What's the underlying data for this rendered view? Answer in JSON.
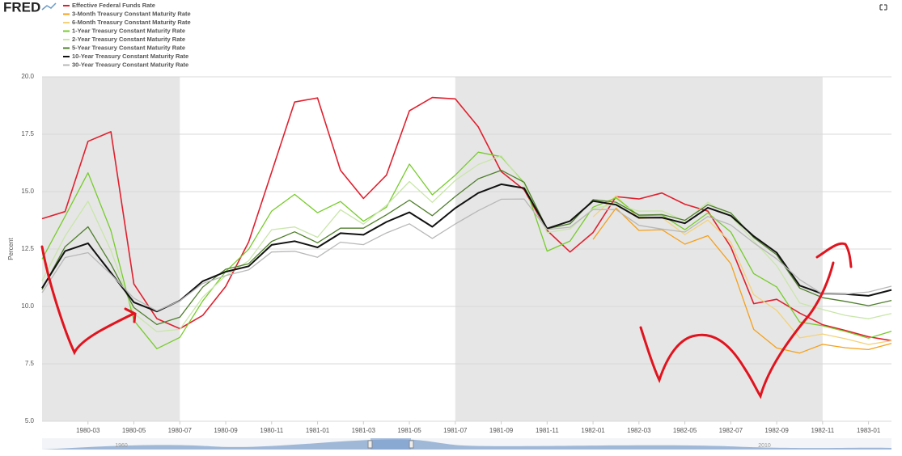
{
  "chart_data": {
    "type": "line",
    "logo": "FRED",
    "y_label": "Percent",
    "x": [
      "1980-01",
      "1980-02",
      "1980-03",
      "1980-04",
      "1980-05",
      "1980-06",
      "1980-07",
      "1980-08",
      "1980-09",
      "1980-10",
      "1980-11",
      "1980-12",
      "1981-01",
      "1981-02",
      "1981-03",
      "1981-04",
      "1981-05",
      "1981-06",
      "1981-07",
      "1981-08",
      "1981-09",
      "1981-10",
      "1981-11",
      "1981-12",
      "1982-01",
      "1982-02",
      "1982-03",
      "1982-04",
      "1982-05",
      "1982-06",
      "1982-07",
      "1982-08",
      "1982-09",
      "1982-10",
      "1982-11",
      "1982-12",
      "1983-01",
      "1983-02"
    ],
    "xlim": [
      "1980-01",
      "1983-02"
    ],
    "xticks": [
      "1980-03",
      "1980-05",
      "1980-07",
      "1980-09",
      "1980-11",
      "1981-01",
      "1981-03",
      "1981-05",
      "1981-07",
      "1981-09",
      "1981-11",
      "1982-01",
      "1982-03",
      "1982-05",
      "1982-07",
      "1982-09",
      "1982-11",
      "1983-01"
    ],
    "ylim": [
      5,
      20
    ],
    "yticks": [
      {
        "value": 20,
        "label": "20.0"
      },
      17.5,
      {
        "value": 15,
        "label": "15.0"
      },
      12.5,
      {
        "value": 10,
        "label": "10.0"
      },
      7.5,
      {
        "value": 5,
        "label": "5.0"
      }
    ],
    "grid": true,
    "shaded_periods": [
      [
        "1980-01",
        "1980-07"
      ],
      [
        "1981-07",
        "1982-11"
      ]
    ],
    "navigator_labels": [
      "1960",
      "2010"
    ],
    "series": [
      {
        "name": "Effective Federal Funds Rate",
        "color": "#e0202e",
        "values": [
          13.82,
          14.13,
          17.19,
          17.61,
          10.98,
          9.47,
          9.03,
          9.61,
          10.87,
          12.81,
          15.85,
          18.9,
          19.08,
          15.93,
          14.7,
          15.72,
          18.52,
          19.1,
          19.04,
          17.82,
          15.87,
          15.08,
          13.31,
          12.37,
          13.22,
          14.78,
          14.68,
          14.94,
          14.45,
          14.15,
          12.59,
          10.12,
          10.31,
          9.71,
          9.2,
          8.95,
          8.68,
          8.51
        ]
      },
      {
        "name": "3-Month Treasury Constant Maturity Rate",
        "color": "#f5a01a",
        "values": [
          null,
          null,
          null,
          null,
          null,
          null,
          null,
          null,
          null,
          null,
          null,
          null,
          null,
          null,
          null,
          null,
          null,
          null,
          null,
          null,
          null,
          null,
          null,
          null,
          12.92,
          14.28,
          13.31,
          13.34,
          12.71,
          13.08,
          11.86,
          9.0,
          8.19,
          7.97,
          8.35,
          8.2,
          8.12,
          8.39
        ]
      },
      {
        "name": "6-Month Treasury Constant Maturity Rate",
        "color": "#f3d27a",
        "values": [
          null,
          null,
          null,
          null,
          null,
          null,
          null,
          null,
          null,
          null,
          null,
          null,
          null,
          null,
          null,
          null,
          null,
          null,
          null,
          null,
          null,
          null,
          null,
          null,
          13.9,
          14.81,
          13.83,
          13.87,
          13.13,
          13.76,
          12.8,
          10.51,
          9.83,
          8.63,
          8.8,
          8.59,
          8.34,
          8.51
        ]
      },
      {
        "name": "1-Year Treasury Constant Maturity Rate",
        "color": "#76cc2a",
        "values": [
          12.06,
          13.92,
          15.82,
          13.3,
          9.39,
          8.16,
          8.65,
          10.24,
          11.52,
          12.49,
          14.15,
          14.88,
          14.08,
          14.57,
          13.71,
          14.32,
          16.2,
          14.86,
          15.72,
          16.72,
          16.52,
          15.38,
          12.41,
          12.85,
          14.32,
          14.73,
          13.95,
          13.98,
          13.34,
          14.07,
          13.24,
          11.43,
          10.85,
          9.32,
          9.16,
          8.91,
          8.62,
          8.92
        ]
      },
      {
        "name": "2-Year Treasury Constant Maturity Rate",
        "color": "#c8e6a8",
        "values": [
          11.12,
          13.06,
          14.58,
          12.44,
          9.7,
          8.9,
          9.0,
          10.4,
          11.34,
          11.99,
          13.34,
          13.46,
          13.01,
          14.21,
          13.58,
          14.4,
          15.44,
          14.53,
          15.49,
          16.18,
          16.56,
          15.33,
          13.22,
          13.38,
          14.26,
          14.45,
          14.15,
          14.16,
          13.72,
          14.54,
          13.92,
          12.85,
          11.77,
          10.15,
          9.87,
          9.61,
          9.46,
          9.69
        ]
      },
      {
        "name": "5-Year Treasury Constant Maturity Rate",
        "color": "#4f7f2c",
        "values": [
          10.74,
          12.6,
          13.47,
          11.84,
          9.95,
          9.21,
          9.53,
          10.84,
          11.62,
          11.86,
          12.83,
          13.25,
          12.77,
          13.41,
          13.41,
          13.99,
          14.63,
          13.95,
          14.79,
          15.56,
          15.93,
          15.41,
          13.38,
          13.6,
          14.65,
          14.54,
          13.98,
          14.0,
          13.75,
          14.43,
          14.07,
          13.0,
          12.25,
          10.8,
          10.38,
          10.22,
          10.03,
          10.26
        ]
      },
      {
        "name": "10-Year Treasury Constant Maturity Rate",
        "color": "#111111",
        "values": [
          10.8,
          12.41,
          12.75,
          11.47,
          10.18,
          9.78,
          10.25,
          11.1,
          11.51,
          11.75,
          12.68,
          12.84,
          12.57,
          13.19,
          13.12,
          13.68,
          14.1,
          13.47,
          14.28,
          14.94,
          15.32,
          15.15,
          13.39,
          13.72,
          14.59,
          14.43,
          13.86,
          13.87,
          13.62,
          14.3,
          13.95,
          13.06,
          12.34,
          10.91,
          10.55,
          10.54,
          10.46,
          10.72
        ]
      },
      {
        "name": "30-Year Treasury Constant Maturity Rate",
        "color": "#b8b8b8",
        "values": [
          10.6,
          12.13,
          12.34,
          11.4,
          10.36,
          9.81,
          10.24,
          11.0,
          11.34,
          11.59,
          12.37,
          12.4,
          12.14,
          12.8,
          12.69,
          13.2,
          13.6,
          12.96,
          13.59,
          14.17,
          14.67,
          14.68,
          13.35,
          13.45,
          14.22,
          14.22,
          13.53,
          13.37,
          13.24,
          13.92,
          13.55,
          12.77,
          12.07,
          11.17,
          10.54,
          10.54,
          10.63,
          10.88
        ]
      }
    ]
  }
}
